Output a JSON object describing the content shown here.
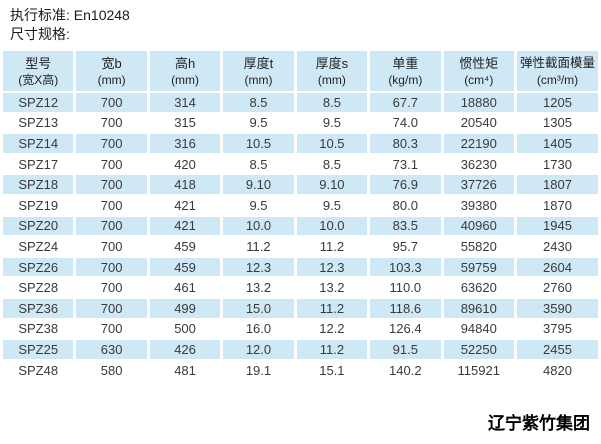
{
  "page": {
    "standard_line": "执行标准: En10248",
    "spec_line": "尺寸规格:",
    "footer": "辽宁紫竹集团"
  },
  "colors": {
    "table_stripe": "#cfe8f5",
    "table_text": "#3a3a3a"
  },
  "table": {
    "columns": [
      {
        "label": "型号",
        "unit": "(宽X高)"
      },
      {
        "label": "宽b",
        "unit": "(mm)"
      },
      {
        "label": "高h",
        "unit": "(mm)"
      },
      {
        "label": "厚度t",
        "unit": "(mm)"
      },
      {
        "label": "厚度s",
        "unit": "(mm)"
      },
      {
        "label": "单重",
        "unit": "(kg/m)"
      },
      {
        "label": "惯性矩",
        "unit": "(cm⁴)"
      },
      {
        "label": "弹性截面模量",
        "unit": "(cm³/m)"
      }
    ],
    "rows": [
      [
        "SPZ12",
        "700",
        "314",
        "8.5",
        "8.5",
        "67.7",
        "18880",
        "1205"
      ],
      [
        "SPZ13",
        "700",
        "315",
        "9.5",
        "9.5",
        "74.0",
        "20540",
        "1305"
      ],
      [
        "SPZ14",
        "700",
        "316",
        "10.5",
        "10.5",
        "80.3",
        "22190",
        "1405"
      ],
      [
        "SPZ17",
        "700",
        "420",
        "8.5",
        "8.5",
        "73.1",
        "36230",
        "1730"
      ],
      [
        "SPZ18",
        "700",
        "418",
        "9.10",
        "9.10",
        "76.9",
        "37726",
        "1807"
      ],
      [
        "SPZ19",
        "700",
        "421",
        "9.5",
        "9.5",
        "80.0",
        "39380",
        "1870"
      ],
      [
        "SPZ20",
        "700",
        "421",
        "10.0",
        "10.0",
        "83.5",
        "40960",
        "1945"
      ],
      [
        "SPZ24",
        "700",
        "459",
        "11.2",
        "11.2",
        "95.7",
        "55820",
        "2430"
      ],
      [
        "SPZ26",
        "700",
        "459",
        "12.3",
        "12.3",
        "103.3",
        "59759",
        "2604"
      ],
      [
        "SPZ28",
        "700",
        "461",
        "13.2",
        "13.2",
        "110.0",
        "63620",
        "2760"
      ],
      [
        "SPZ36",
        "700",
        "499",
        "15.0",
        "11.2",
        "118.6",
        "89610",
        "3590"
      ],
      [
        "SPZ38",
        "700",
        "500",
        "16.0",
        "12.2",
        "126.4",
        "94840",
        "3795"
      ],
      [
        "SPZ25",
        "630",
        "426",
        "12.0",
        "11.2",
        "91.5",
        "52250",
        "2455"
      ],
      [
        "SPZ48",
        "580",
        "481",
        "19.1",
        "15.1",
        "140.2",
        "115921",
        "4820"
      ]
    ]
  }
}
